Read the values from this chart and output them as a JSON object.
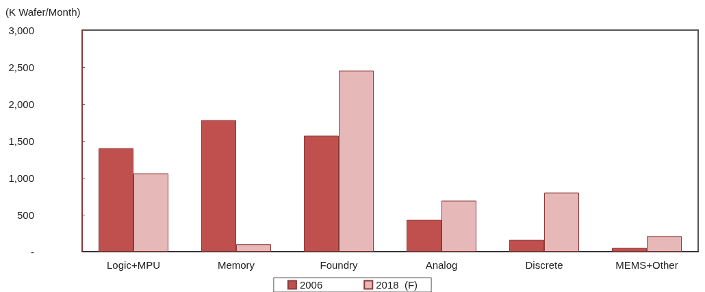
{
  "chart_data": {
    "type": "bar",
    "ylabel": "(K Wafer/Month)",
    "categories": [
      "Logic+MPU",
      "Memory",
      "Foundry",
      "Analog",
      "Discrete",
      "MEMS+Other"
    ],
    "series": [
      {
        "name": "2006",
        "color": "#c0504d",
        "values": [
          1400,
          1780,
          1570,
          430,
          160,
          50
        ]
      },
      {
        "name": "2018  (F)",
        "color": "#e6b8b7",
        "values": [
          1060,
          100,
          2450,
          690,
          800,
          210
        ]
      }
    ],
    "ylim": [
      0,
      3000
    ],
    "yticks": [
      {
        "value": 0,
        "label": "-"
      },
      {
        "value": 500,
        "label": "500"
      },
      {
        "value": 1000,
        "label": "1,000"
      },
      {
        "value": 1500,
        "label": "1,500"
      },
      {
        "value": 2000,
        "label": "2,000"
      },
      {
        "value": 2500,
        "label": "2,500"
      },
      {
        "value": 3000,
        "label": "3,000"
      }
    ],
    "grid": false,
    "legend": "bottom"
  }
}
